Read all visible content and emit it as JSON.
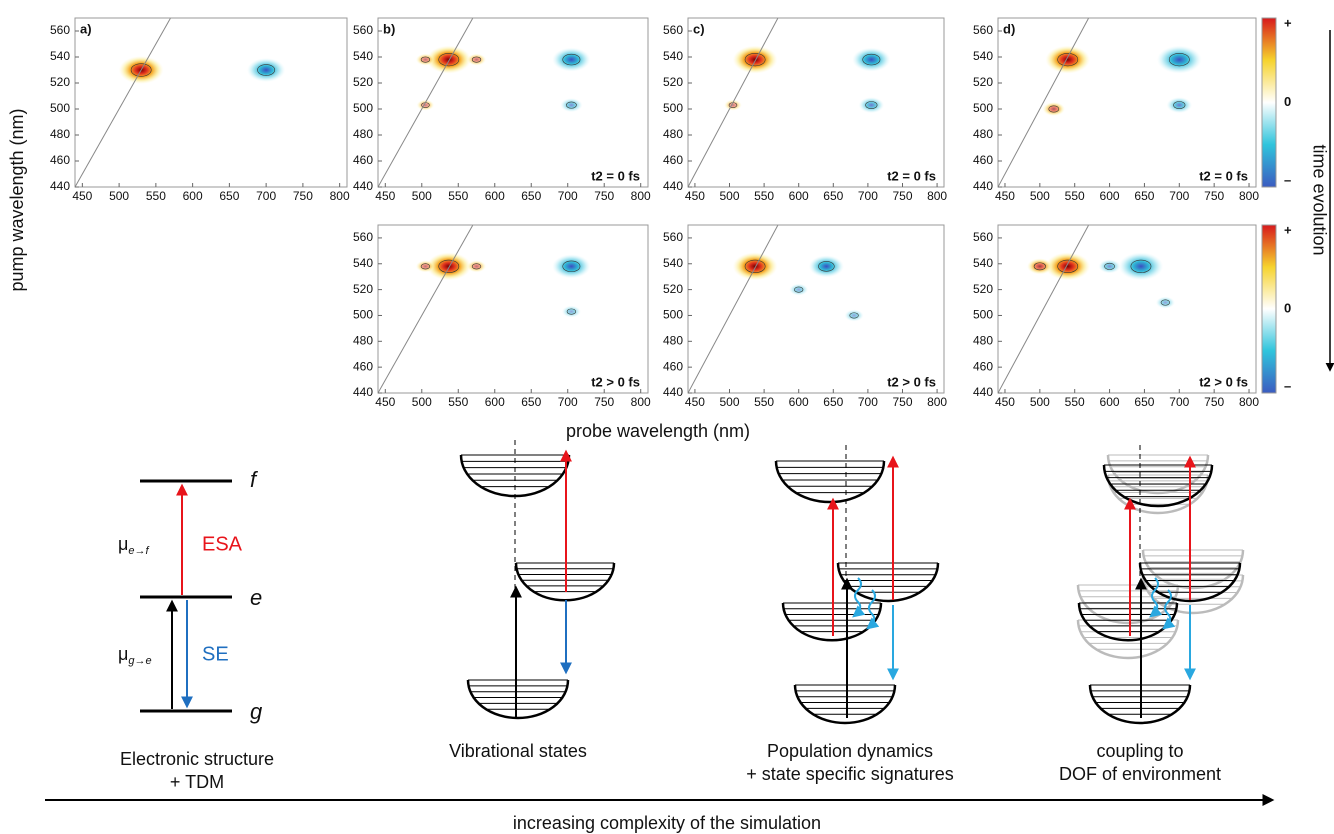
{
  "chart_data": [
    {
      "type": "contour",
      "label": "a)",
      "xlim": [
        440,
        810
      ],
      "ylim": [
        440,
        570
      ],
      "xticks": [
        450,
        500,
        550,
        600,
        650,
        700,
        750,
        800
      ],
      "yticks": [
        440,
        460,
        480,
        500,
        520,
        540,
        560
      ],
      "x": [
        530,
        700
      ],
      "y": [
        530,
        530
      ],
      "values": [
        1,
        -0.8
      ]
    },
    {
      "type": "contour",
      "label": "b)",
      "annotation": "t2 = 0 fs",
      "xlim": [
        440,
        810
      ],
      "ylim": [
        440,
        570
      ],
      "xticks": [
        450,
        500,
        550,
        600,
        650,
        700,
        750,
        800
      ],
      "yticks": [
        440,
        460,
        480,
        500,
        520,
        540,
        560
      ],
      "x": [
        537,
        705,
        505,
        575,
        705,
        505
      ],
      "y": [
        538,
        538,
        538,
        538,
        503,
        503
      ],
      "values": [
        1,
        -0.8,
        0.2,
        0.2,
        -0.3,
        0.15
      ]
    },
    {
      "type": "contour",
      "annotation": "t2 > 0 fs",
      "xlim": [
        440,
        810
      ],
      "ylim": [
        440,
        570
      ],
      "xticks": [
        450,
        500,
        550,
        600,
        650,
        700,
        750,
        800
      ],
      "yticks": [
        440,
        460,
        480,
        500,
        520,
        540,
        560
      ],
      "x": [
        537,
        705,
        505,
        575,
        705
      ],
      "y": [
        538,
        538,
        538,
        538,
        503
      ],
      "values": [
        1,
        -0.8,
        0.2,
        0.2,
        -0.2
      ]
    },
    {
      "type": "contour",
      "label": "c)",
      "annotation": "t2 = 0 fs",
      "xlim": [
        440,
        810
      ],
      "ylim": [
        440,
        570
      ],
      "xticks": [
        450,
        500,
        550,
        600,
        650,
        700,
        750,
        800
      ],
      "yticks": [
        440,
        460,
        480,
        500,
        520,
        540,
        560
      ],
      "x": [
        537,
        705,
        705,
        505
      ],
      "y": [
        538,
        538,
        503,
        503
      ],
      "values": [
        1,
        -0.8,
        -0.4,
        0.15
      ]
    },
    {
      "type": "contour",
      "annotation": "t2 > 0 fs",
      "xlim": [
        440,
        810
      ],
      "ylim": [
        440,
        570
      ],
      "xticks": [
        450,
        500,
        550,
        600,
        650,
        700,
        750,
        800
      ],
      "yticks": [
        440,
        460,
        480,
        500,
        520,
        540,
        560
      ],
      "x": [
        537,
        640,
        600,
        680
      ],
      "y": [
        538,
        538,
        520,
        500
      ],
      "values": [
        1,
        -0.7,
        -0.2,
        -0.2
      ]
    },
    {
      "type": "contour",
      "label": "d)",
      "annotation": "t2 = 0 fs",
      "xlim": [
        440,
        810
      ],
      "ylim": [
        440,
        570
      ],
      "xticks": [
        450,
        500,
        550,
        600,
        650,
        700,
        750,
        800
      ],
      "yticks": [
        440,
        460,
        480,
        500,
        520,
        540,
        560
      ],
      "x": [
        540,
        700,
        700,
        520
      ],
      "y": [
        538,
        538,
        503,
        500
      ],
      "values": [
        1,
        -1,
        -0.4,
        0.3
      ]
    },
    {
      "type": "contour",
      "annotation": "t2 > 0 fs",
      "xlim": [
        440,
        810
      ],
      "ylim": [
        440,
        570
      ],
      "xticks": [
        450,
        500,
        550,
        600,
        650,
        700,
        750,
        800
      ],
      "yticks": [
        440,
        460,
        480,
        500,
        520,
        540,
        560
      ],
      "x": [
        540,
        645,
        600,
        500,
        680
      ],
      "y": [
        538,
        538,
        538,
        538,
        510
      ],
      "values": [
        1,
        -1,
        -0.3,
        0.4,
        -0.2
      ]
    }
  ],
  "axis_labels": {
    "y": "pump wavelength (nm)",
    "x": "probe wavelength (nm)"
  },
  "colorbar": {
    "label": "time evolution",
    "ticks": [
      "+",
      "0",
      "–"
    ]
  },
  "levels": {
    "f": "f",
    "e": "e",
    "g": "g",
    "mu_ef": {
      "symbol": "μ",
      "subscript": "e→f"
    },
    "mu_ge": {
      "symbol": "μ",
      "subscript": "g→e"
    },
    "esa": "ESA",
    "se": "SE"
  },
  "captions": [
    [
      "Electronic structure",
      "+ TDM"
    ],
    [
      "Vibrational states"
    ],
    [
      "Population dynamics",
      "+ state specific signatures"
    ],
    [
      "coupling to",
      "DOF of environment"
    ]
  ],
  "footer": "increasing complexity of the simulation"
}
